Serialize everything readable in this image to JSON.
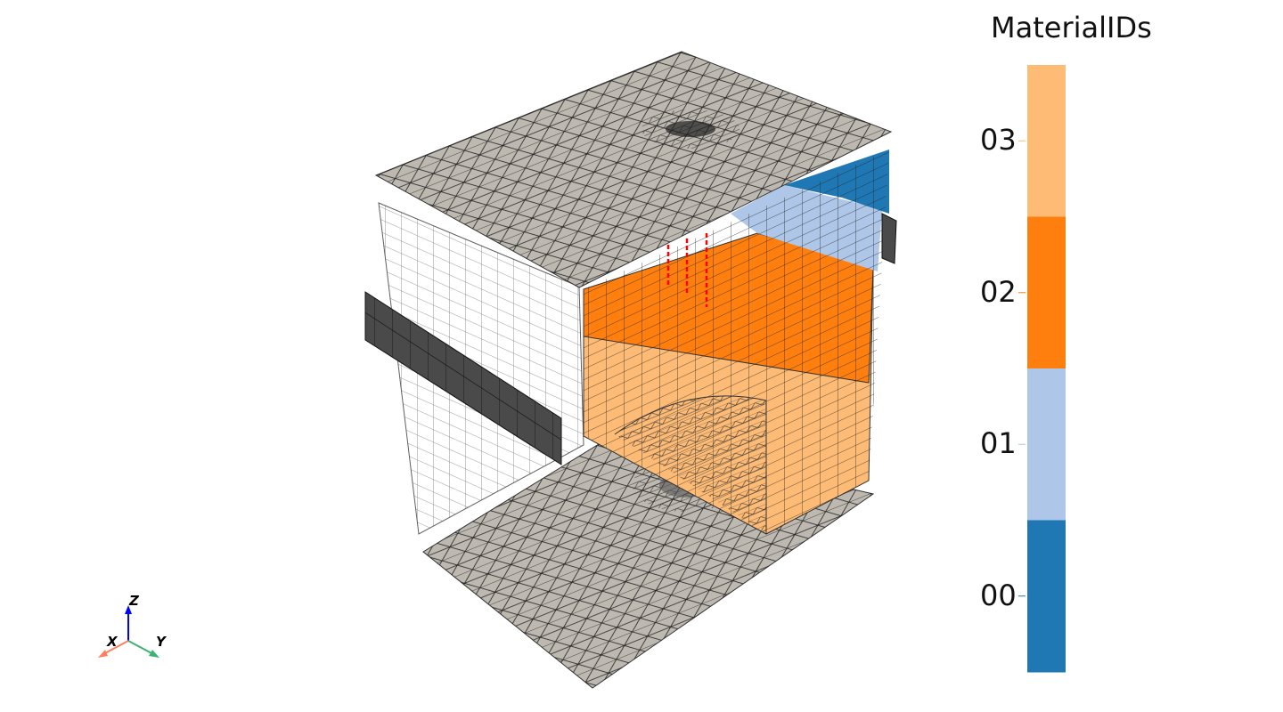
{
  "colorbar": {
    "title": "MaterialIDs",
    "labels": [
      "03",
      "02",
      "01",
      "00"
    ],
    "colors": [
      "#fdbb76",
      "#ff7f0e",
      "#aec7e8",
      "#1f77b4"
    ]
  },
  "orientation_widget": {
    "x": "X",
    "y": "Y",
    "z": "Z",
    "colors": {
      "x": "#ff7f5e",
      "y": "#3cb371",
      "z": "#0000ff"
    }
  },
  "mesh_colors": {
    "plate": "#bdb9b0",
    "fault": "#4a4a4a",
    "wells": "#ff0000"
  }
}
